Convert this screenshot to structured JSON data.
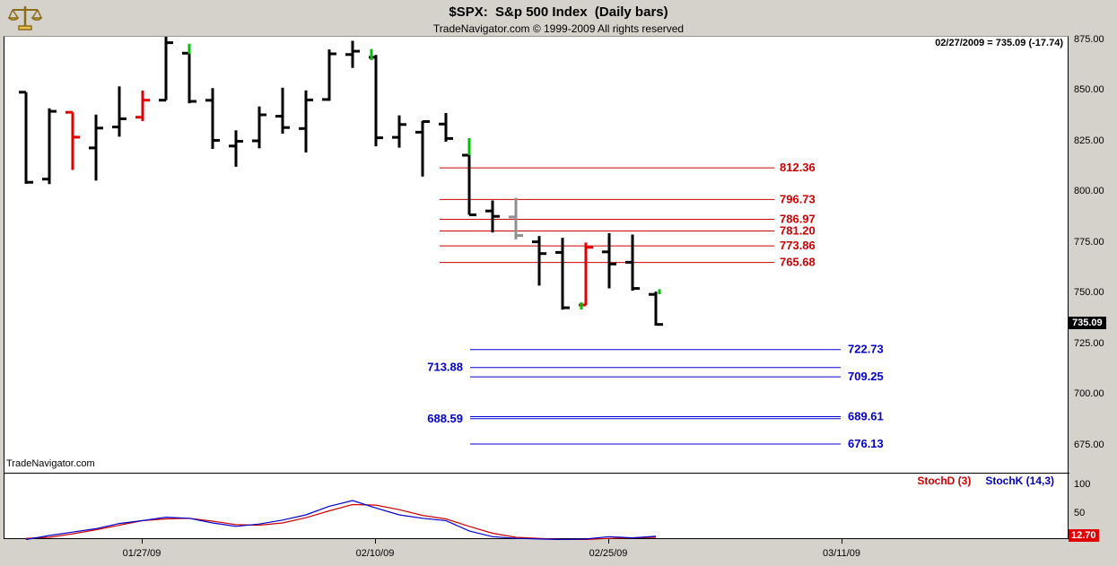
{
  "header": {
    "title": "$SPX:  S&p 500 Index  (Daily bars)",
    "subtitle": "TradeNavigator.com © 1999-2009 All rights reserved",
    "quote": "02/27/2009 = 735.09 (-17.74)"
  },
  "watermark": "TradeNavigator.com",
  "colors": {
    "background": "#d5d2cb",
    "chart_bg": "#ffffff",
    "bar_black": "#000000",
    "bar_red": "#e00000",
    "bar_gray": "#909090",
    "signal_green": "#00c000",
    "level_red": "#cc0000",
    "level_blue": "#0000cc",
    "last_price_bg": "#000000",
    "stoch_value_bg": "#e00000"
  },
  "price_axis": {
    "ticks": [
      875,
      850,
      825,
      800,
      775,
      750,
      725,
      700,
      675
    ],
    "last_price": 735.09
  },
  "stoch_panel": {
    "d_label": "StochD (3)",
    "k_label": "StochK (14,3)",
    "ticks": [
      100,
      50
    ],
    "last_value": 12.7
  },
  "x_axis": {
    "dates": [
      {
        "label": "01/27/09",
        "bar": 5
      },
      {
        "label": "02/10/09",
        "bar": 15
      },
      {
        "label": "02/25/09",
        "bar": 25
      },
      {
        "label": "03/11/09",
        "bar": 35
      }
    ]
  },
  "chart_data": {
    "type": "ohlc-bar",
    "title": "$SPX S&p 500 Index (Daily bars)",
    "symbol": "$SPX",
    "period": "Daily",
    "ylim": [
      661,
      877
    ],
    "grid": false,
    "bars": [
      {
        "date": "01/20/09",
        "o": 849.64,
        "h": 849.64,
        "l": 804.47,
        "c": 805.22,
        "color": "black"
      },
      {
        "date": "01/21/09",
        "o": 806.77,
        "h": 841.72,
        "l": 804.3,
        "c": 840.24,
        "color": "black"
      },
      {
        "date": "01/22/09",
        "o": 839.74,
        "h": 839.74,
        "l": 811.29,
        "c": 827.5,
        "color": "red"
      },
      {
        "date": "01/23/09",
        "o": 822.17,
        "h": 838.61,
        "l": 806.07,
        "c": 831.95,
        "color": "black"
      },
      {
        "date": "01/26/09",
        "o": 832.5,
        "h": 852.53,
        "l": 827.69,
        "c": 836.57,
        "color": "black"
      },
      {
        "date": "01/27/09",
        "o": 837.3,
        "h": 850.45,
        "l": 835.4,
        "c": 845.71,
        "color": "red"
      },
      {
        "date": "01/28/09",
        "o": 845.73,
        "h": 877.86,
        "l": 845.73,
        "c": 874.09,
        "color": "black"
      },
      {
        "date": "01/29/09",
        "o": 868.89,
        "h": 868.89,
        "l": 844.15,
        "c": 845.14,
        "color": "black"
      },
      {
        "date": "01/30/09",
        "o": 845.69,
        "h": 851.66,
        "l": 821.67,
        "c": 825.88,
        "color": "black"
      },
      {
        "date": "02/02/09",
        "o": 823.09,
        "h": 830.84,
        "l": 812.87,
        "c": 825.44,
        "color": "black"
      },
      {
        "date": "02/03/09",
        "o": 825.69,
        "h": 842.6,
        "l": 821.98,
        "c": 838.51,
        "color": "black"
      },
      {
        "date": "02/04/09",
        "o": 837.81,
        "h": 851.85,
        "l": 829.17,
        "c": 832.23,
        "color": "black"
      },
      {
        "date": "02/05/09",
        "o": 831.75,
        "h": 850.55,
        "l": 819.91,
        "c": 845.85,
        "color": "black"
      },
      {
        "date": "02/06/09",
        "o": 846.09,
        "h": 870.75,
        "l": 845.42,
        "c": 868.6,
        "color": "black"
      },
      {
        "date": "02/09/09",
        "o": 868.24,
        "h": 875.01,
        "l": 861.65,
        "c": 869.89,
        "color": "black"
      },
      {
        "date": "02/10/09",
        "o": 866.87,
        "h": 868.05,
        "l": 822.99,
        "c": 827.16,
        "color": "black"
      },
      {
        "date": "02/11/09",
        "o": 827.41,
        "h": 838.22,
        "l": 822.3,
        "c": 833.74,
        "color": "black"
      },
      {
        "date": "02/12/09",
        "o": 829.91,
        "h": 835.48,
        "l": 808.06,
        "c": 835.19,
        "color": "black"
      },
      {
        "date": "02/13/09",
        "o": 833.95,
        "h": 839.41,
        "l": 825.21,
        "c": 826.84,
        "color": "black"
      },
      {
        "date": "02/17/09",
        "o": 818.61,
        "h": 818.61,
        "l": 789.17,
        "c": 789.17,
        "color": "black"
      },
      {
        "date": "02/18/09",
        "o": 791.06,
        "h": 796.23,
        "l": 780.43,
        "c": 788.42,
        "color": "black"
      },
      {
        "date": "02/19/09",
        "o": 788.09,
        "h": 797.57,
        "l": 777.03,
        "c": 778.94,
        "color": "gray"
      },
      {
        "date": "02/20/09",
        "o": 775.87,
        "h": 778.69,
        "l": 754.25,
        "c": 770.05,
        "color": "black"
      },
      {
        "date": "02/23/09",
        "o": 770.64,
        "h": 777.85,
        "l": 742.37,
        "c": 743.33,
        "color": "black"
      },
      {
        "date": "02/24/09",
        "o": 744.69,
        "h": 775.49,
        "l": 744.69,
        "c": 773.14,
        "color": "red"
      },
      {
        "date": "02/25/09",
        "o": 770.89,
        "h": 780.12,
        "l": 752.89,
        "c": 764.9,
        "color": "black"
      },
      {
        "date": "02/26/09",
        "o": 765.74,
        "h": 779.42,
        "l": 751.75,
        "c": 752.83,
        "color": "black"
      },
      {
        "date": "02/27/09",
        "o": 749.93,
        "h": 751.27,
        "l": 734.52,
        "c": 735.09,
        "color": "black"
      }
    ],
    "resistance_levels": [
      812.36,
      796.73,
      786.97,
      781.2,
      773.86,
      765.68
    ],
    "support_levels": [
      {
        "value": 722.73,
        "label_side": "right"
      },
      {
        "value": 713.88,
        "label_side": "left"
      },
      {
        "value": 709.25,
        "label_side": "right"
      },
      {
        "value": 689.61,
        "label_side": "right"
      },
      {
        "value": 688.59,
        "label_side": "left"
      },
      {
        "value": 676.13,
        "label_side": "right"
      }
    ],
    "green_marks": [
      {
        "bar": 7,
        "top": 873.5,
        "bottom": 868.5,
        "dx": 0
      },
      {
        "bar": 15,
        "top": 871.0,
        "bottom": 865.5,
        "dx": -5
      },
      {
        "bar": 19,
        "top": 827.0,
        "bottom": 818.6,
        "dx": 0
      },
      {
        "bar": 24,
        "top": 746.0,
        "bottom": 742.5,
        "dx": -5
      },
      {
        "bar": 27,
        "top": 752.5,
        "bottom": 750.0,
        "dx": 4
      }
    ],
    "stochastic": {
      "range": [
        0,
        100
      ],
      "k": [
        7,
        14,
        20,
        26,
        35,
        40,
        46,
        44,
        36,
        30,
        34,
        41,
        50,
        65,
        75,
        62,
        50,
        44,
        40,
        22,
        12,
        9,
        8,
        7,
        8,
        12,
        10,
        12.7
      ],
      "d": [
        9,
        11,
        17,
        24,
        32,
        40,
        43,
        44,
        39,
        33,
        32,
        36,
        45,
        57,
        68,
        67,
        59,
        49,
        43,
        30,
        18,
        11,
        9,
        7,
        7,
        9,
        10,
        11
      ]
    }
  }
}
